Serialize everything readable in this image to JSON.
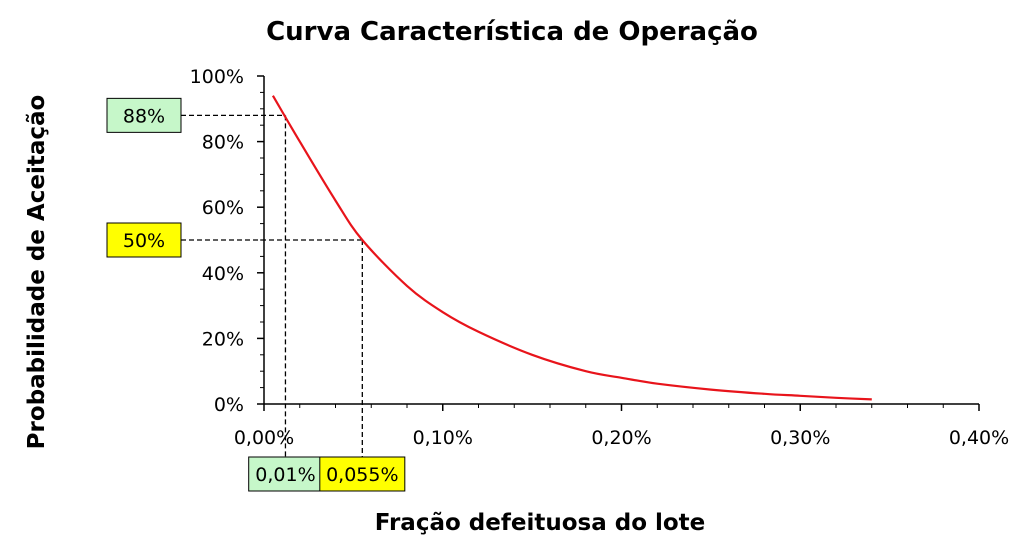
{
  "chart_data": {
    "type": "line",
    "title": "Curva Característica de Operação",
    "xlabel": "Fração defeituosa do lote",
    "ylabel": "Probabilidade de Aceitação",
    "xlim": [
      0,
      0.4
    ],
    "ylim": [
      0,
      100
    ],
    "x_ticks": [
      0,
      0.1,
      0.2,
      0.3,
      0.4
    ],
    "x_tick_labels": [
      "0,00%",
      "0,10%",
      "0,20%",
      "0,30%",
      "0,40%"
    ],
    "y_ticks": [
      0,
      20,
      40,
      60,
      80,
      100
    ],
    "y_tick_labels": [
      "0%",
      "20%",
      "40%",
      "60%",
      "80%",
      "100%"
    ],
    "x_unit": "percent",
    "y_unit": "percent",
    "grid": false,
    "legend": "none",
    "series": [
      {
        "color": "#e8141b",
        "x": [
          0.005,
          0.02,
          0.04,
          0.055,
          0.08,
          0.1,
          0.12,
          0.15,
          0.18,
          0.2,
          0.22,
          0.25,
          0.28,
          0.3,
          0.32,
          0.34
        ],
        "y": [
          94,
          80,
          62,
          50,
          36,
          28,
          22,
          15,
          10,
          8,
          6.2,
          4.4,
          3.1,
          2.5,
          1.9,
          1.4
        ]
      }
    ],
    "reference_points": [
      {
        "x": 0.012,
        "y": 88,
        "y_label": "88%",
        "x_label": "0,01%",
        "fill": "#c6f7c9"
      },
      {
        "x": 0.055,
        "y": 50,
        "y_label": "50%",
        "x_label": "0,055%",
        "fill": "#ffff00"
      }
    ]
  }
}
